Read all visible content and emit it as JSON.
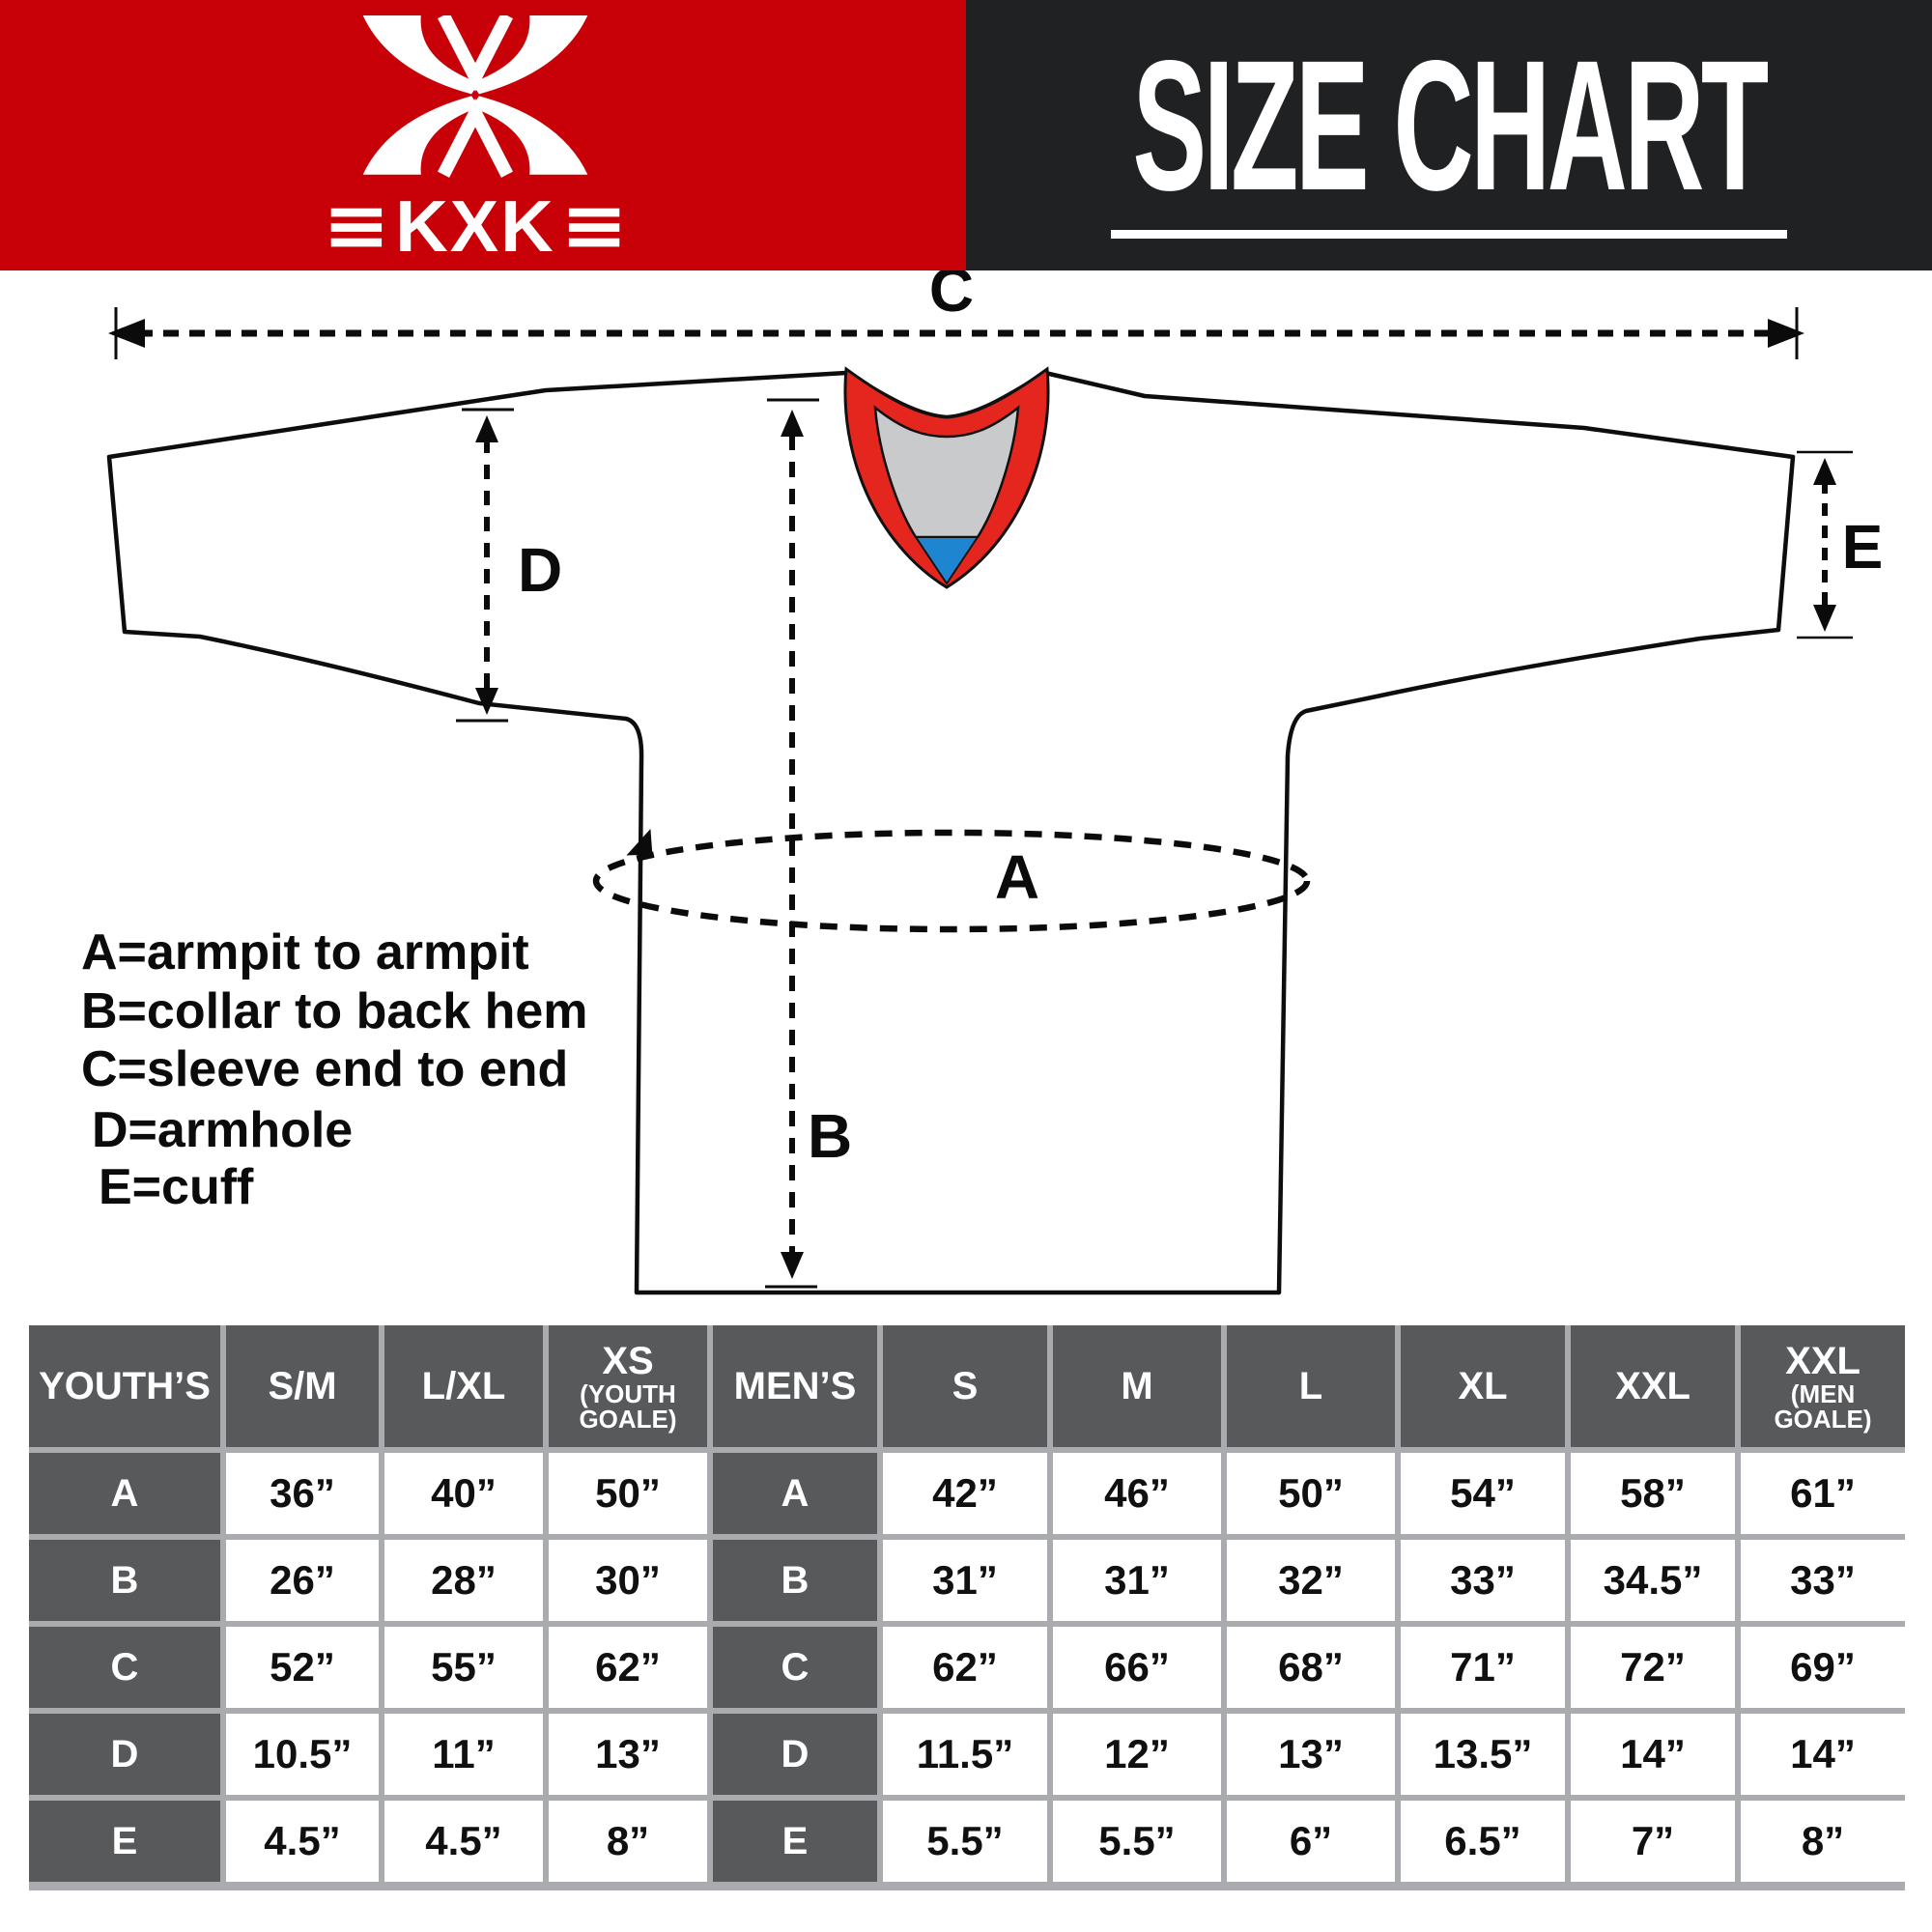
{
  "header": {
    "brand": "KXK",
    "title": "SIZE CHART",
    "colors": {
      "red": "#C80007",
      "dark": "#1F2122"
    }
  },
  "diagram": {
    "labels": {
      "A": "A",
      "B": "B",
      "C": "C",
      "D": "D",
      "E": "E"
    },
    "legend": [
      "A=armpit to armpit",
      "B=collar to back hem",
      "C=sleeve end to end",
      "D=armhole",
      "E=cuff"
    ],
    "colors": {
      "collar_red": "#E5261F",
      "collar_gray": "#C9CACB",
      "collar_blue": "#1E86D0",
      "outline": "#0D0D0D"
    }
  },
  "table": {
    "colors": {
      "header_cell": "#58595B",
      "grid_gap": "#A9ABAE"
    },
    "columns": [
      {
        "label": "YOUTH’S",
        "sub": ""
      },
      {
        "label": "S/M",
        "sub": ""
      },
      {
        "label": "L/XL",
        "sub": ""
      },
      {
        "label": "XS",
        "sub": "(YOUTH GOALE)"
      },
      {
        "label": "MEN’S",
        "sub": ""
      },
      {
        "label": "S",
        "sub": ""
      },
      {
        "label": "M",
        "sub": ""
      },
      {
        "label": "L",
        "sub": ""
      },
      {
        "label": "XL",
        "sub": ""
      },
      {
        "label": "XXL",
        "sub": ""
      },
      {
        "label": "XXL",
        "sub": "(MEN GOALE)"
      }
    ],
    "rows": [
      {
        "cells": [
          "A",
          "36”",
          "40”",
          "50”",
          "A",
          "42”",
          "46”",
          "50”",
          "54”",
          "58”",
          "61”"
        ]
      },
      {
        "cells": [
          "B",
          "26”",
          "28”",
          "30”",
          "B",
          "31”",
          "31”",
          "32”",
          "33”",
          "34.5”",
          "33”"
        ]
      },
      {
        "cells": [
          "C",
          "52”",
          "55”",
          "62”",
          "C",
          "62”",
          "66”",
          "68”",
          "71”",
          "72”",
          "69”"
        ]
      },
      {
        "cells": [
          "D",
          "10.5”",
          "11”",
          "13”",
          "D",
          "11.5”",
          "12”",
          "13”",
          "13.5”",
          "14”",
          "14”"
        ]
      },
      {
        "cells": [
          "E",
          "4.5”",
          "4.5”",
          "8”",
          "E",
          "5.5”",
          "5.5”",
          "6”",
          "6.5”",
          "7”",
          "8”"
        ]
      }
    ]
  }
}
